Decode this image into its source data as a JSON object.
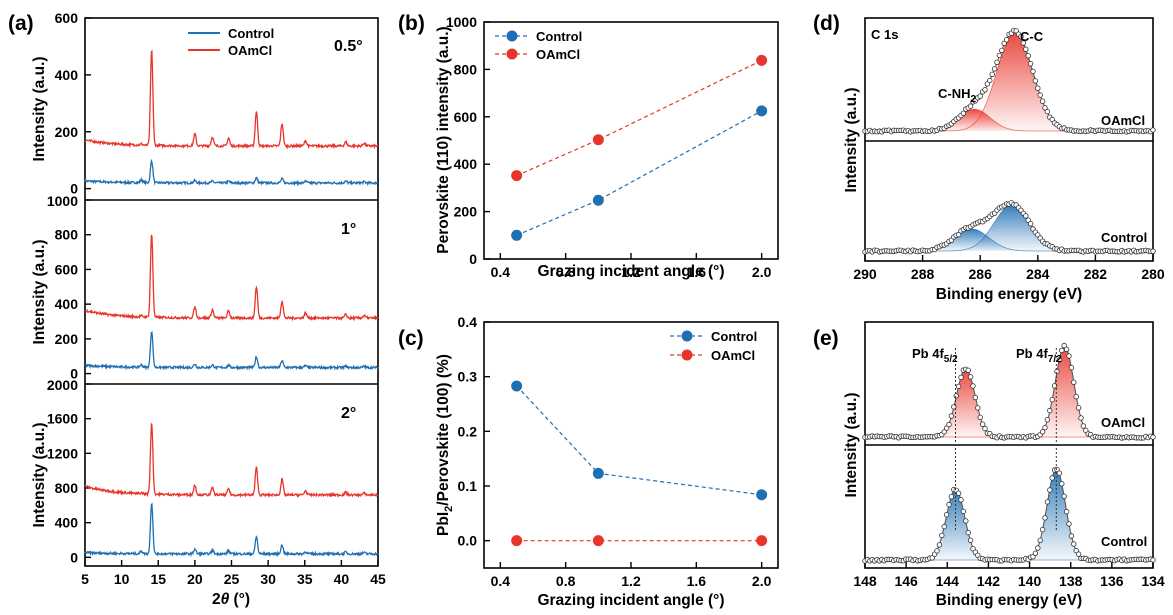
{
  "colors": {
    "control": "#1f6fb3",
    "oamcl": "#e8352b",
    "fit": "#bbbbbb"
  },
  "chart_data": [
    {
      "panel": "(a)",
      "type": "line",
      "xlabel": "2θ (°)",
      "xlabel_main": "2",
      "xlabel_theta": "θ",
      "xlabel_unit": " (°)",
      "ylabel": "Intensity (a.u.)",
      "xlim": [
        5,
        45
      ],
      "xticks": [
        "5",
        "10",
        "15",
        "20",
        "25",
        "30",
        "35",
        "40",
        "45"
      ],
      "legend": {
        "position": "top-center",
        "entries": [
          "Control",
          "OAmCl"
        ]
      },
      "peaks": [
        12.7,
        14.1,
        20.0,
        22.4,
        24.6,
        28.4,
        31.9,
        35.1,
        40.6,
        43.1
      ],
      "subplots": [
        {
          "annotation": "0.5°",
          "ylim": [
            -40,
            600
          ],
          "yticks": [
            "0",
            "200",
            "400",
            "600"
          ],
          "control": {
            "offset": 20,
            "peak_heights": [
              10,
              78,
              8,
              6,
              6,
              18,
              14,
              6,
              6,
              4
            ]
          },
          "oamcl": {
            "offset": 150,
            "peak_heights": [
              4,
              335,
              42,
              32,
              28,
              122,
              78,
              18,
              14,
              10
            ]
          }
        },
        {
          "annotation": "1°",
          "ylim": [
            -60,
            1000
          ],
          "yticks": [
            "0",
            "200",
            "400",
            "600",
            "800",
            "1000"
          ],
          "control": {
            "offset": 35,
            "peak_heights": [
              14,
              210,
              20,
              14,
              12,
              62,
              40,
              10,
              8,
              6
            ]
          },
          "oamcl": {
            "offset": 320,
            "peak_heights": [
              6,
              480,
              62,
              48,
              42,
              180,
              98,
              30,
              20,
              14
            ]
          }
        },
        {
          "annotation": "2°",
          "ylim": [
            -100,
            2000
          ],
          "yticks": [
            "0",
            "400",
            "800",
            "1200",
            "1600",
            "2000"
          ],
          "control": {
            "offset": 40,
            "peak_heights": [
              30,
              590,
              55,
              40,
              35,
              200,
              100,
              25,
              20,
              15
            ]
          },
          "oamcl": {
            "offset": 720,
            "peak_heights": [
              10,
              820,
              110,
              80,
              70,
              320,
              180,
              50,
              30,
              20
            ]
          }
        }
      ]
    },
    {
      "panel": "(b)",
      "type": "line",
      "xlabel": "Grazing incident angle (°)",
      "ylabel": "Perovskite (110) intensity (a.u.)",
      "xlim": [
        0.3,
        2.1
      ],
      "ylim": [
        0,
        1000
      ],
      "xticks": [
        "0.4",
        "0.8",
        "1.2",
        "1.6",
        "2.0"
      ],
      "yticks": [
        "0",
        "200",
        "400",
        "600",
        "800",
        "1000"
      ],
      "legend": {
        "position": "top-left",
        "entries": [
          "Control",
          "OAmCl"
        ]
      },
      "x": [
        0.5,
        1.0,
        2.0
      ],
      "series": [
        {
          "name": "Control",
          "values": [
            100,
            248,
            625
          ]
        },
        {
          "name": "OAmCl",
          "values": [
            352,
            503,
            838
          ]
        }
      ]
    },
    {
      "panel": "(c)",
      "type": "line",
      "xlabel": "Grazing incident angle (°)",
      "ylabel": "PbI2/Perovskite (100) (%)",
      "ylabel_a": "PbI",
      "ylabel_sub": "2",
      "ylabel_b": "/Perovskite (100) (%)",
      "xlim": [
        0.3,
        2.1
      ],
      "ylim": [
        -0.05,
        0.4
      ],
      "xticks": [
        "0.4",
        "0.8",
        "1.2",
        "1.6",
        "2.0"
      ],
      "yticks": [
        "0.0",
        "0.1",
        "0.2",
        "0.3",
        "0.4"
      ],
      "legend": {
        "position": "top-right",
        "entries": [
          "Control",
          "OAmCl"
        ]
      },
      "x": [
        0.5,
        1.0,
        2.0
      ],
      "series": [
        {
          "name": "Control",
          "values": [
            0.283,
            0.123,
            0.084
          ]
        },
        {
          "name": "OAmCl",
          "values": [
            0.0,
            0.0,
            0.0
          ]
        }
      ]
    },
    {
      "panel": "(d)",
      "type": "line",
      "xlabel": "Binding energy (eV)",
      "ylabel": "Intensity (a.u.)",
      "xlim": [
        290,
        280
      ],
      "xticks": [
        "290",
        "288",
        "286",
        "284",
        "282",
        "280"
      ],
      "region": "C 1s",
      "peak_labels": {
        "cc": "C-C",
        "cnh2_main": "C-NH",
        "cnh2_sub": "2"
      },
      "series_labels": [
        "OAmCl",
        "Control"
      ],
      "oamcl_peaks": [
        {
          "center": 284.8,
          "height": 1.0,
          "width": 0.62
        },
        {
          "center": 286.2,
          "height": 0.22,
          "width": 0.55
        }
      ],
      "control_peaks": [
        {
          "center": 284.9,
          "height": 0.48,
          "width": 0.62
        },
        {
          "center": 286.3,
          "height": 0.23,
          "width": 0.6
        }
      ]
    },
    {
      "panel": "(e)",
      "type": "line",
      "xlabel": "Binding energy (eV)",
      "ylabel": "Intensity (a.u.)",
      "xlim": [
        148,
        134
      ],
      "xticks": [
        "148",
        "146",
        "144",
        "142",
        "140",
        "138",
        "136",
        "134"
      ],
      "peak_labels": {
        "pb52_main": "Pb 4f",
        "pb52_sub": "5/2",
        "pb72_main": "Pb 4f",
        "pb72_sub": "7/2"
      },
      "series_labels": [
        "OAmCl",
        "Control"
      ],
      "oamcl_peaks": [
        {
          "center": 143.1,
          "height": 0.68,
          "width": 0.45
        },
        {
          "center": 138.3,
          "height": 0.9,
          "width": 0.45
        }
      ],
      "control_peaks": [
        {
          "center": 143.6,
          "height": 0.7,
          "width": 0.45
        },
        {
          "center": 138.7,
          "height": 0.9,
          "width": 0.45
        }
      ]
    }
  ]
}
